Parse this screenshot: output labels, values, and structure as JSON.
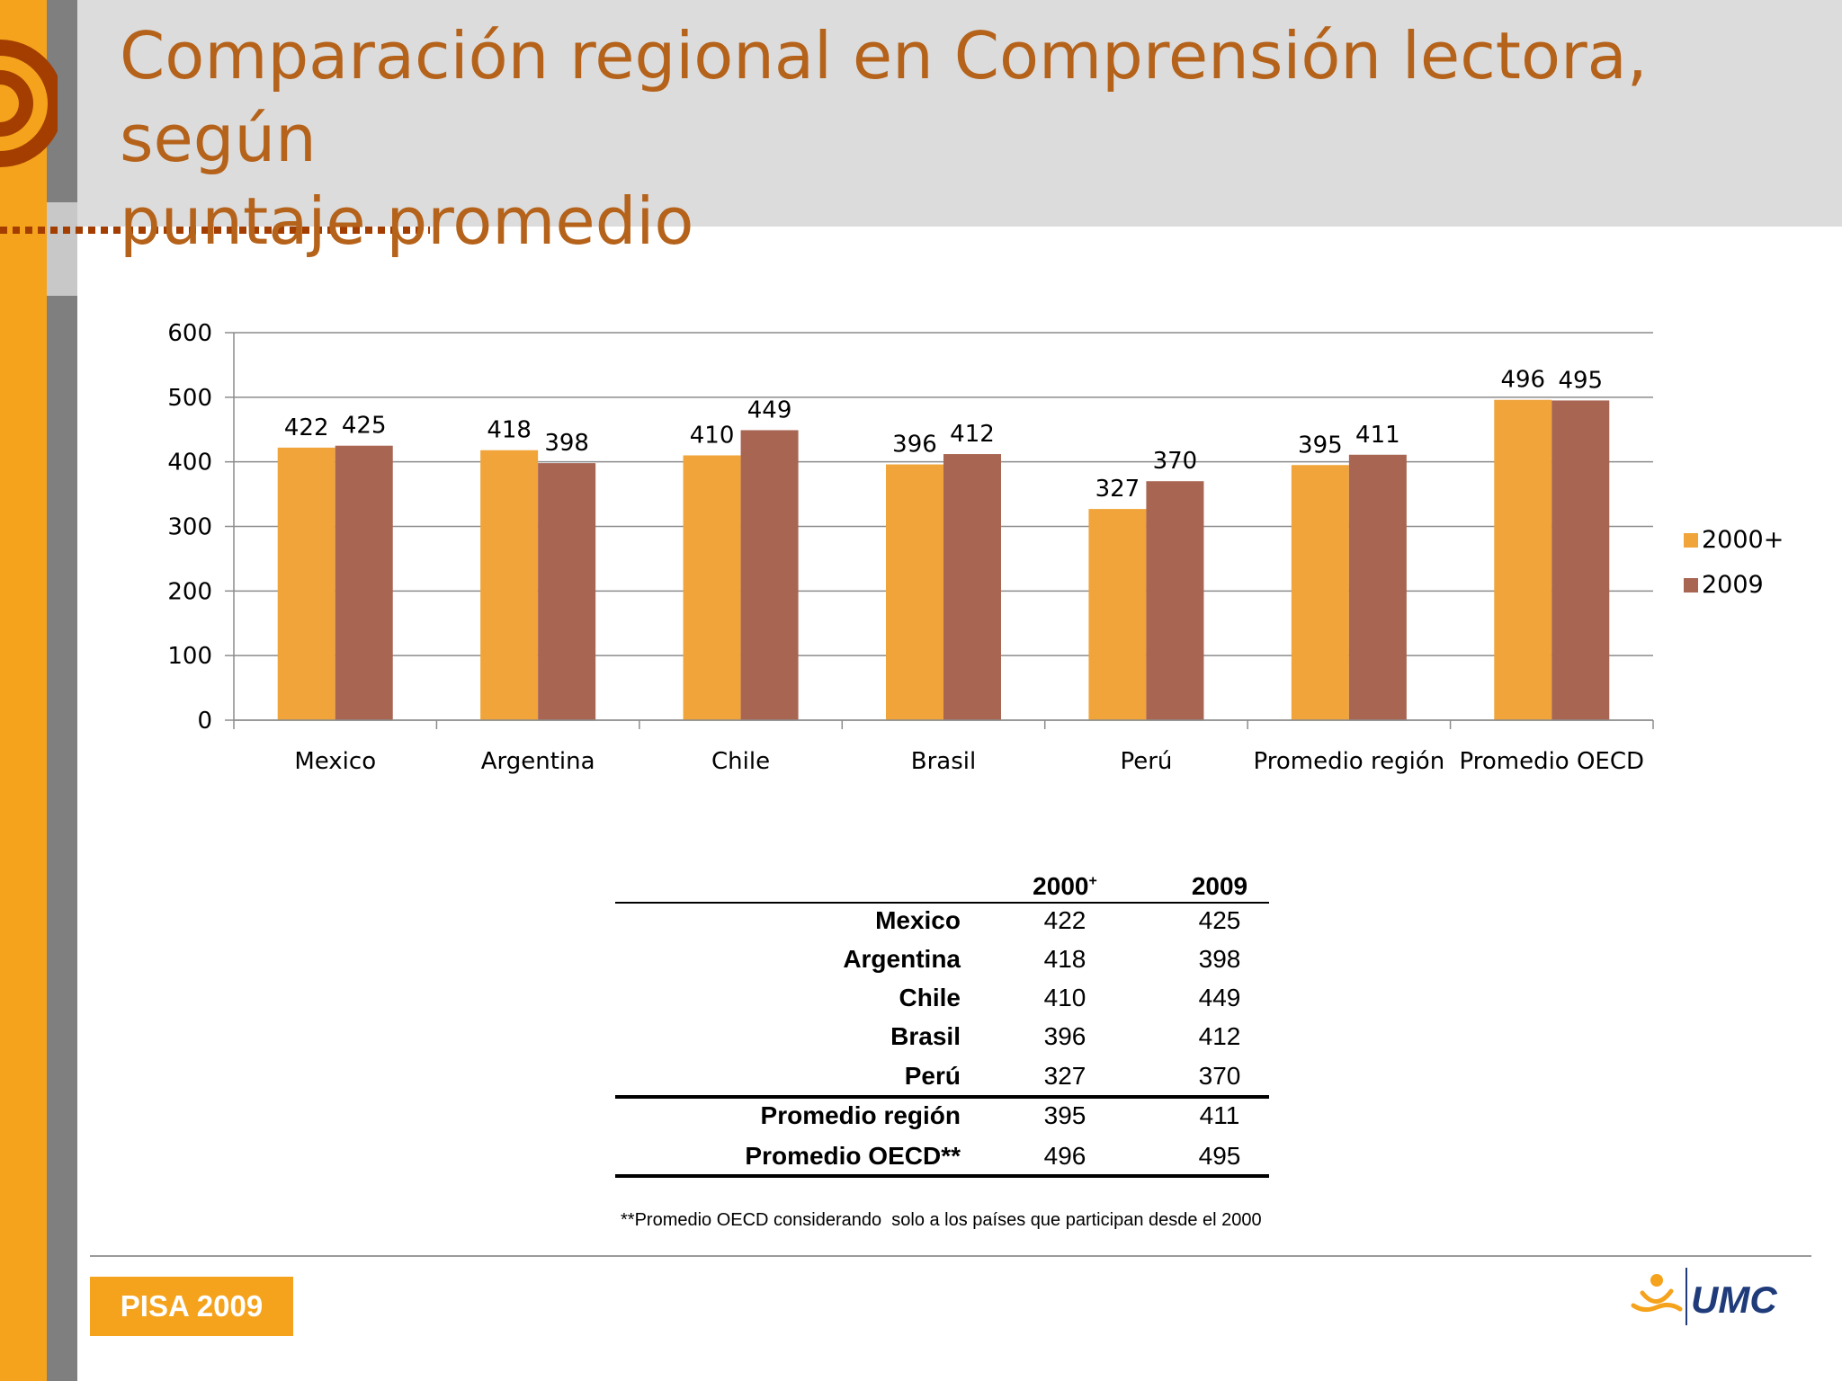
{
  "slide": {
    "title_line1": "Comparación regional en Comprensión lectora, según",
    "title_line2": "puntaje promedio",
    "footnote": "**Promedio OECD considerando  solo a los países que participan desde el 2000",
    "badge": "PISA 2009",
    "logo_text": "UMC"
  },
  "colors": {
    "series_2000": "#f0a43a",
    "series_2009": "#a86552",
    "title": "#b5621a",
    "accent_orange": "#f5a21c",
    "side_gray": "#7f7f7f",
    "header_gray": "#dcdcdc"
  },
  "chart_data": {
    "type": "bar",
    "categories": [
      "Mexico",
      "Argentina",
      "Chile",
      "Brasil",
      "Perú",
      "Promedio región",
      "Promedio OECD"
    ],
    "series": [
      {
        "name": "2000+",
        "values": [
          422,
          418,
          410,
          396,
          327,
          395,
          496
        ]
      },
      {
        "name": "2009",
        "values": [
          425,
          398,
          449,
          412,
          370,
          411,
          495
        ]
      }
    ],
    "yticks": [
      "0",
      "100",
      "200",
      "300",
      "400",
      "500",
      "600"
    ],
    "ylim": [
      0,
      600
    ],
    "grid": true,
    "legend_position": "right"
  },
  "table": {
    "header_2000": "2000",
    "header_2000_sup": "+",
    "header_2009": "2009",
    "rows": [
      {
        "label": "Mexico",
        "v2000": "422",
        "v2009": "425"
      },
      {
        "label": "Argentina",
        "v2000": "418",
        "v2009": "398"
      },
      {
        "label": "Chile",
        "v2000": "410",
        "v2009": "449"
      },
      {
        "label": "Brasil",
        "v2000": "396",
        "v2009": "412"
      },
      {
        "label": "Perú",
        "v2000": "327",
        "v2009": "370"
      },
      {
        "label": "Promedio región",
        "v2000": "395",
        "v2009": "411"
      },
      {
        "label": "Promedio OECD**",
        "v2000": "496",
        "v2009": "495"
      }
    ]
  }
}
